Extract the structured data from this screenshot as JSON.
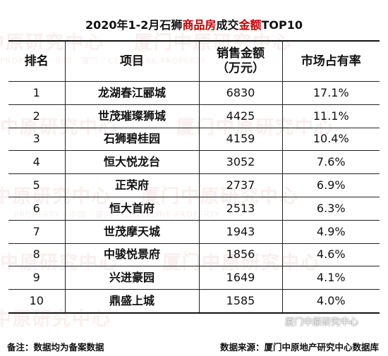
{
  "title": {
    "part1": "2020年1-2月石狮",
    "highlight1": "商品房",
    "part2": "成交",
    "highlight2": "金额",
    "part3": "TOP10"
  },
  "table": {
    "headers": {
      "rank": "排名",
      "project": "项目",
      "amount_line1": "销售金额",
      "amount_line2": "（万元）",
      "share": "市场占有率"
    },
    "rows": [
      {
        "rank": "1",
        "project": "龙湖春江郦城",
        "amount": "6830",
        "share": "17.1%"
      },
      {
        "rank": "2",
        "project": "世茂璀璨狮城",
        "amount": "4425",
        "share": "11.1%"
      },
      {
        "rank": "3",
        "project": "石狮碧桂园",
        "amount": "4159",
        "share": "10.4%"
      },
      {
        "rank": "4",
        "project": "恒大悦龙台",
        "amount": "3052",
        "share": "7.6%"
      },
      {
        "rank": "5",
        "project": "正荣府",
        "amount": "2737",
        "share": "6.9%"
      },
      {
        "rank": "6",
        "project": "恒大首府",
        "amount": "2513",
        "share": "6.3%"
      },
      {
        "rank": "7",
        "project": "世茂摩天城",
        "amount": "1943",
        "share": "4.9%"
      },
      {
        "rank": "8",
        "project": "中骏悦景府",
        "amount": "1856",
        "share": "4.6%"
      },
      {
        "rank": "9",
        "project": "兴进豪园",
        "amount": "1649",
        "share": "4.1%"
      },
      {
        "rank": "10",
        "project": "鼎盛上城",
        "amount": "1585",
        "share": "4.0%"
      }
    ]
  },
  "watermark": {
    "main": "中原研究中心",
    "alt": "厦门中原研究中心",
    "sub": "PROPERTY · 中国 · 厦门 · CENTALINE PROPERTY"
  },
  "social_badge": "厦门中原研究中心",
  "footer": {
    "note": "备注：数据均为备案数据",
    "source": "数据来源：厦门中原地产研究中心数据库"
  },
  "colors": {
    "accent_red": "#c00000",
    "watermark": "#e19696"
  }
}
